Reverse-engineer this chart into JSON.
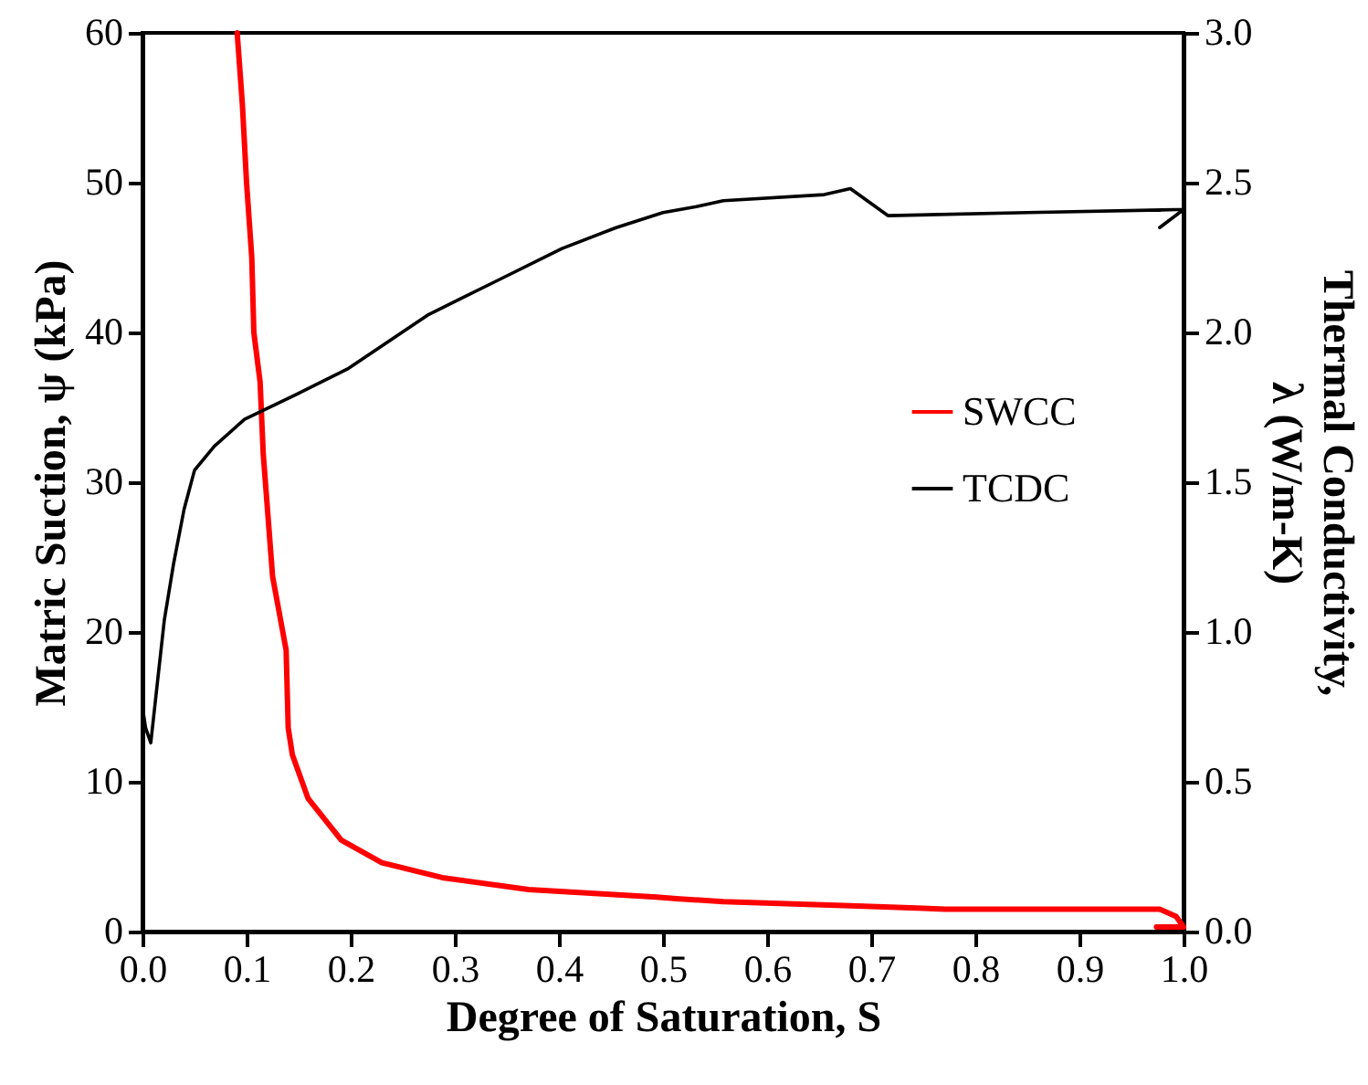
{
  "chart_data": {
    "type": "line",
    "xlabel": "Degree of Saturation, S",
    "ylabel": "Matric Suction, ψ (kPa)",
    "y2label": "Thermal Conductivity,\nλ (W/m-K)",
    "xlim": [
      0,
      1
    ],
    "xticks": [
      {
        "value": 0,
        "label": "0.0"
      },
      {
        "value": 0.1,
        "label": "0.1"
      },
      {
        "value": 0.2,
        "label": "0.2"
      },
      {
        "value": 0.3,
        "label": "0.3"
      },
      {
        "value": 0.4,
        "label": "0.4"
      },
      {
        "value": 0.5,
        "label": "0.5"
      },
      {
        "value": 0.6,
        "label": "0.6"
      },
      {
        "value": 0.7,
        "label": "0.7"
      },
      {
        "value": 0.8,
        "label": "0.8"
      },
      {
        "value": 0.9,
        "label": "0.9"
      },
      {
        "value": 1,
        "label": "1.0"
      }
    ],
    "ylim": [
      0,
      60
    ],
    "yticks": [
      0,
      10,
      20,
      30,
      40,
      50,
      60
    ],
    "y2lim": [
      0,
      3
    ],
    "y2ticks": [
      {
        "value": 0,
        "label": "0.0"
      },
      {
        "value": 0.5,
        "label": "0.5"
      },
      {
        "value": 1,
        "label": "1.0"
      },
      {
        "value": 1.5,
        "label": "1.5"
      },
      {
        "value": 2,
        "label": "2.0"
      },
      {
        "value": 2.5,
        "label": "2.5"
      },
      {
        "value": 3,
        "label": "3.0"
      }
    ],
    "legend": "right",
    "grid": false,
    "marker": "none",
    "line_style": "solid",
    "series": [
      {
        "name": "SWCC",
        "color": "#ff0000",
        "x": [
          0.091,
          0.096,
          0.1,
          0.105,
          0.107,
          0.113,
          0.116,
          0.125,
          0.138,
          0.14,
          0.144,
          0.159,
          0.191,
          0.23,
          0.288,
          0.371,
          0.494,
          0.513,
          0.558,
          0.687,
          0.771,
          0.85,
          0.977,
          0.993,
          1.0,
          0.974
        ],
        "values": [
          60,
          55.2,
          50,
          45,
          40,
          36.7,
          31.9,
          23.7,
          18.8,
          13.6,
          11.8,
          8.9,
          6.1,
          4.6,
          3.6,
          2.8,
          2.3,
          2.2,
          2.0,
          1.7,
          1.5,
          1.5,
          1.5,
          1.0,
          0.3,
          0.3
        ]
      },
      {
        "name": "TCDC",
        "color": "#000000",
        "axis": "y2",
        "x": [
          0,
          0.003,
          0.008,
          0.014,
          0.021,
          0.03,
          0.04,
          0.05,
          0.069,
          0.098,
          0.146,
          0.198,
          0.275,
          0.339,
          0.403,
          0.455,
          0.5,
          0.532,
          0.558,
          0.655,
          0.68,
          0.716,
          0.85,
          0.994,
          1.0,
          0.977
        ],
        "values": [
          0.75,
          0.68,
          0.63,
          0.82,
          1.04,
          1.23,
          1.41,
          1.54,
          1.62,
          1.71,
          1.79,
          1.88,
          2.06,
          2.17,
          2.28,
          2.35,
          2.4,
          2.42,
          2.44,
          2.46,
          2.48,
          2.39,
          2.4,
          2.41,
          2.41,
          2.35
        ]
      }
    ]
  }
}
